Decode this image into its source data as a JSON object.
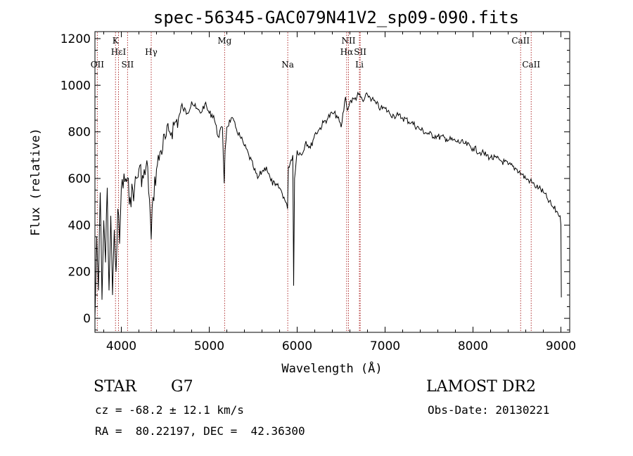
{
  "chart_data": {
    "type": "line",
    "title": "spec-56345-GAC079N41V2_sp09-090.fits",
    "xlabel": "Wavelength (Å)",
    "ylabel": "Flux (relative)",
    "xlim": [
      3700,
      9100
    ],
    "ylim": [
      -60,
      1230
    ],
    "xticks": [
      4000,
      5000,
      6000,
      7000,
      8000,
      9000
    ],
    "yticks": [
      0,
      200,
      400,
      600,
      800,
      1000,
      1200
    ],
    "grid": false,
    "series": [
      {
        "x": [
          3700,
          3720,
          3740,
          3760,
          3780,
          3800,
          3820,
          3840,
          3860,
          3880,
          3900,
          3920,
          3940,
          3960,
          3980,
          4000,
          4050,
          4100,
          4150,
          4200,
          4250,
          4300,
          4340,
          4360,
          4400,
          4450,
          4500,
          4550,
          4600,
          4650,
          4700,
          4750,
          4800,
          4850,
          4900,
          4950,
          5000,
          5050,
          5100,
          5150,
          5170,
          5180,
          5200,
          5250,
          5300,
          5350,
          5400,
          5450,
          5500,
          5550,
          5600,
          5650,
          5700,
          5750,
          5800,
          5850,
          5890,
          5900,
          5950,
          5960,
          5970,
          6000,
          6050,
          6100,
          6150,
          6200,
          6250,
          6300,
          6350,
          6400,
          6450,
          6500,
          6550,
          6563,
          6580,
          6600,
          6650,
          6700,
          6750,
          6800,
          6850,
          6900,
          6950,
          7000,
          7050,
          7100,
          7150,
          7200,
          7300,
          7400,
          7500,
          7600,
          7700,
          7800,
          7900,
          8000,
          8100,
          8200,
          8300,
          8400,
          8500,
          8550,
          8600,
          8650,
          8700,
          8750,
          8800,
          8850,
          8900,
          8950,
          8990,
          9000,
          9005
        ],
        "values": [
          0,
          350,
          120,
          540,
          80,
          420,
          240,
          560,
          120,
          440,
          100,
          380,
          200,
          470,
          320,
          560,
          600,
          520,
          560,
          640,
          600,
          650,
          340,
          520,
          640,
          720,
          770,
          800,
          830,
          860,
          900,
          880,
          930,
          900,
          880,
          920,
          880,
          870,
          780,
          820,
          580,
          720,
          820,
          860,
          820,
          780,
          740,
          700,
          650,
          600,
          630,
          650,
          590,
          570,
          560,
          520,
          470,
          650,
          700,
          140,
          600,
          720,
          700,
          760,
          730,
          790,
          810,
          840,
          860,
          880,
          870,
          820,
          950,
          910,
          900,
          930,
          940,
          960,
          930,
          960,
          940,
          920,
          900,
          900,
          880,
          870,
          870,
          860,
          840,
          810,
          790,
          780,
          770,
          760,
          750,
          730,
          710,
          690,
          680,
          660,
          640,
          620,
          600,
          590,
          570,
          560,
          540,
          510,
          480,
          460,
          440,
          400,
          90
        ]
      }
    ],
    "spectral_lines": [
      {
        "label": "OII",
        "x": 3727,
        "tier": 3
      },
      {
        "label": "K",
        "x": 3934,
        "tier": 1
      },
      {
        "label": "HεI",
        "x": 3968,
        "tier": 2
      },
      {
        "label": "SII",
        "x": 4071,
        "tier": 3
      },
      {
        "label": "Hγ",
        "x": 4340,
        "tier": 2
      },
      {
        "label": "Mg",
        "x": 5175,
        "tier": 1
      },
      {
        "label": "Na",
        "x": 5893,
        "tier": 3
      },
      {
        "label": "NII",
        "x": 6584,
        "tier": 1
      },
      {
        "label": "Hα",
        "x": 6563,
        "tier": 2
      },
      {
        "label": "SII",
        "x": 6717,
        "tier": 2
      },
      {
        "label": "Li",
        "x": 6708,
        "tier": 3
      },
      {
        "label": "CaII",
        "x": 8542,
        "tier": 1
      },
      {
        "label": "CaII",
        "x": 8662,
        "tier": 3
      }
    ]
  },
  "info": {
    "class": "STAR",
    "subclass": "G7",
    "survey": "LAMOST DR2",
    "cz": "cz = -68.2 ± 12.1 km/s",
    "obs_date": "Obs-Date: 20130221",
    "coords": "RA =  80.22197, DEC =  42.36300"
  }
}
